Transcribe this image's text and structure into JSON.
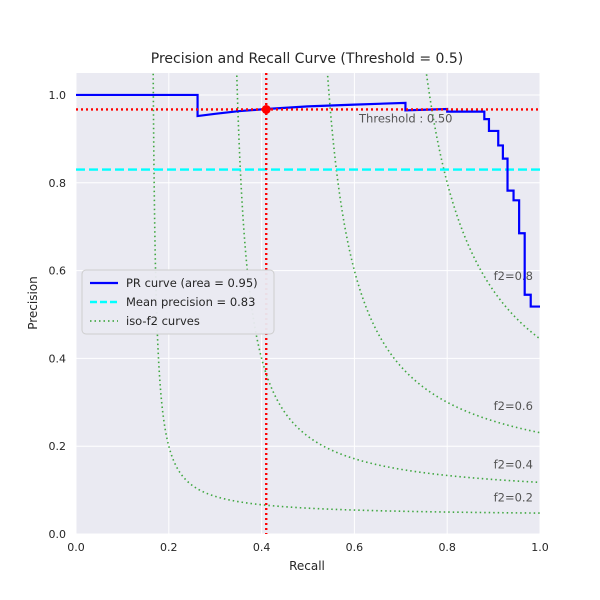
{
  "chart_data": {
    "type": "line",
    "title": "Precision and Recall Curve (Threshold = 0.5)",
    "xlabel": "Recall",
    "ylabel": "Precision",
    "xlim": [
      0,
      1
    ],
    "ylim": [
      0,
      1.05
    ],
    "xticks": [
      "0.0",
      "0.2",
      "0.4",
      "0.6",
      "0.8",
      "1.0"
    ],
    "yticks": [
      "0.0",
      "0.2",
      "0.4",
      "0.6",
      "0.8",
      "1.0"
    ],
    "grid": true,
    "background": "#eaeaf2",
    "legend_placement": "center-left",
    "series": [
      {
        "name": "PR curve (area = 0.95)",
        "color": "#0000ff",
        "style": "solid",
        "points": [
          [
            0.0,
            1.0
          ],
          [
            0.262,
            1.0
          ],
          [
            0.262,
            0.952
          ],
          [
            0.3,
            0.957
          ],
          [
            0.35,
            0.963
          ],
          [
            0.41,
            0.968
          ],
          [
            0.5,
            0.974
          ],
          [
            0.6,
            0.978
          ],
          [
            0.71,
            0.982
          ],
          [
            0.71,
            0.965
          ],
          [
            0.8,
            0.968
          ],
          [
            0.8,
            0.962
          ],
          [
            0.88,
            0.962
          ],
          [
            0.88,
            0.945
          ],
          [
            0.89,
            0.945
          ],
          [
            0.89,
            0.918
          ],
          [
            0.91,
            0.918
          ],
          [
            0.91,
            0.885
          ],
          [
            0.92,
            0.885
          ],
          [
            0.92,
            0.855
          ],
          [
            0.93,
            0.855
          ],
          [
            0.93,
            0.782
          ],
          [
            0.943,
            0.782
          ],
          [
            0.943,
            0.76
          ],
          [
            0.955,
            0.76
          ],
          [
            0.955,
            0.685
          ],
          [
            0.967,
            0.685
          ],
          [
            0.967,
            0.545
          ],
          [
            0.98,
            0.545
          ],
          [
            0.98,
            0.518
          ],
          [
            1.0,
            0.518
          ]
        ]
      },
      {
        "name": "Mean precision = 0.83",
        "color": "#00ffff",
        "style": "dashed",
        "points": [
          [
            0,
            0.83
          ],
          [
            1,
            0.83
          ]
        ]
      },
      {
        "name": "iso-f2 curves",
        "color": "#2ca02c",
        "style": "dotted",
        "f2_values": [
          0.2,
          0.4,
          0.6,
          0.8
        ],
        "labels": [
          "f2=0.2",
          "f2=0.4",
          "f2=0.6",
          "f2=0.8"
        ]
      }
    ],
    "threshold": {
      "recall": 0.41,
      "precision": 0.967,
      "label": "Threshold : 0.50",
      "color": "#ff0000"
    }
  }
}
